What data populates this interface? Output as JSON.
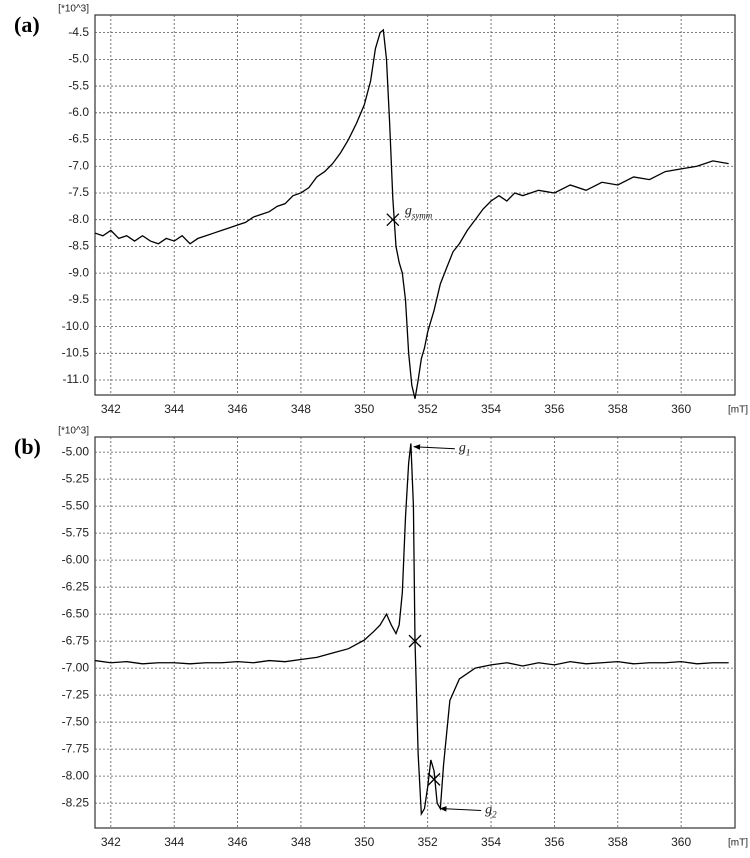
{
  "chart_data": [
    {
      "type": "line",
      "panel_label": "(a)",
      "y_unit_label": "[*10^3]",
      "x_unit_label": "[mT]",
      "x": [
        341.5,
        341.75,
        342,
        342.25,
        342.5,
        342.75,
        343,
        343.25,
        343.5,
        343.75,
        344,
        344.25,
        344.5,
        344.75,
        345,
        345.25,
        345.5,
        345.75,
        346,
        346.25,
        346.5,
        346.75,
        347,
        347.25,
        347.5,
        347.75,
        348,
        348.25,
        348.5,
        348.75,
        349,
        349.25,
        349.5,
        349.75,
        350,
        350.2,
        350.35,
        350.5,
        350.6,
        350.7,
        350.8,
        350.9,
        351,
        351.1,
        351.2,
        351.3,
        351.4,
        351.5,
        351.6,
        351.7,
        351.8,
        351.9,
        352,
        352.2,
        352.4,
        352.6,
        352.8,
        353,
        353.25,
        353.5,
        353.75,
        354,
        354.25,
        354.5,
        354.75,
        355,
        355.5,
        356,
        356.5,
        357,
        357.5,
        358,
        358.5,
        359,
        359.5,
        360,
        360.5,
        361,
        361.5
      ],
      "series": [
        {
          "color": "#000000",
          "values": [
            -8.25,
            -8.3,
            -8.2,
            -8.35,
            -8.3,
            -8.4,
            -8.3,
            -8.4,
            -8.45,
            -8.35,
            -8.4,
            -8.3,
            -8.45,
            -8.35,
            -8.3,
            -8.25,
            -8.2,
            -8.15,
            -8.1,
            -8.05,
            -7.95,
            -7.9,
            -7.85,
            -7.75,
            -7.7,
            -7.55,
            -7.5,
            -7.4,
            -7.2,
            -7.1,
            -6.95,
            -6.75,
            -6.5,
            -6.2,
            -5.85,
            -5.4,
            -4.8,
            -4.5,
            -4.45,
            -5.0,
            -6.2,
            -7.6,
            -8.5,
            -8.8,
            -9.0,
            -9.5,
            -10.5,
            -11.1,
            -11.35,
            -11.0,
            -10.6,
            -10.4,
            -10.1,
            -9.7,
            -9.2,
            -8.9,
            -8.6,
            -8.45,
            -8.2,
            -8.0,
            -7.8,
            -7.65,
            -7.55,
            -7.65,
            -7.5,
            -7.55,
            -7.45,
            -7.5,
            -7.35,
            -7.45,
            -7.3,
            -7.35,
            -7.2,
            -7.25,
            -7.1,
            -7.05,
            -7.0,
            -6.9,
            -6.95
          ]
        }
      ],
      "xlim": [
        341.5,
        361.7
      ],
      "ylim": [
        -11.28,
        -4.17
      ],
      "xticks": [
        342,
        344,
        346,
        348,
        350,
        352,
        354,
        356,
        358,
        360
      ],
      "yticks": [
        -4.5,
        {
          "value": -5,
          "label": "-5.0"
        },
        -5.5,
        {
          "value": -6,
          "label": "-6.0"
        },
        -6.5,
        {
          "value": -7,
          "label": "-7.0"
        },
        -7.5,
        {
          "value": -8,
          "label": "-8.0"
        },
        -8.5,
        {
          "value": -9,
          "label": "-9.0"
        },
        -9.5,
        {
          "value": -10,
          "label": "-10.0"
        },
        -10.5,
        {
          "value": -11,
          "label": "-11.0"
        }
      ],
      "grid": true,
      "markers": [
        {
          "x": 350.9,
          "y": -8.0
        }
      ],
      "annotations": [
        {
          "text": "g",
          "subscript": "symm",
          "x": 350.9,
          "y": -8.0,
          "arrow": false
        }
      ]
    },
    {
      "type": "line",
      "panel_label": "(b)",
      "y_unit_label": "[*10^3]",
      "x_unit_label": "[mT]",
      "x": [
        341.5,
        342,
        342.5,
        343,
        343.5,
        344,
        344.5,
        345,
        345.5,
        346,
        346.5,
        347,
        347.5,
        348,
        348.5,
        349,
        349.5,
        350,
        350.3,
        350.5,
        350.7,
        350.85,
        351,
        351.1,
        351.2,
        351.3,
        351.4,
        351.47,
        351.55,
        351.6,
        351.7,
        351.8,
        351.9,
        352,
        352.1,
        352.2,
        352.3,
        352.4,
        352.5,
        352.7,
        353,
        353.5,
        354,
        354.5,
        355,
        355.5,
        356,
        356.5,
        357,
        357.5,
        358,
        358.5,
        359,
        359.5,
        360,
        360.5,
        361,
        361.5
      ],
      "series": [
        {
          "color": "#000000",
          "values": [
            -6.93,
            -6.95,
            -6.94,
            -6.96,
            -6.95,
            -6.95,
            -6.96,
            -6.95,
            -6.95,
            -6.94,
            -6.95,
            -6.93,
            -6.94,
            -6.92,
            -6.9,
            -6.86,
            -6.82,
            -6.74,
            -6.66,
            -6.6,
            -6.5,
            -6.6,
            -6.68,
            -6.6,
            -6.3,
            -5.6,
            -5.1,
            -4.92,
            -5.5,
            -6.75,
            -7.8,
            -8.35,
            -8.3,
            -8.1,
            -7.85,
            -7.95,
            -8.25,
            -8.3,
            -7.9,
            -7.3,
            -7.1,
            -7.0,
            -6.97,
            -6.95,
            -6.98,
            -6.95,
            -6.97,
            -6.94,
            -6.96,
            -6.95,
            -6.94,
            -6.96,
            -6.95,
            -6.95,
            -6.94,
            -6.96,
            -6.95,
            -6.95
          ]
        }
      ],
      "xlim": [
        341.5,
        361.7
      ],
      "ylim": [
        -8.48,
        -4.86
      ],
      "xticks": [
        342,
        344,
        346,
        348,
        350,
        352,
        354,
        356,
        358,
        360
      ],
      "yticks": [
        {
          "value": -5,
          "label": "-5.00"
        },
        -5.25,
        {
          "value": -5.5,
          "label": "-5.50"
        },
        -5.75,
        {
          "value": -6,
          "label": "-6.00"
        },
        -6.25,
        {
          "value": -6.5,
          "label": "-6.50"
        },
        -6.75,
        {
          "value": -7,
          "label": "-7.00"
        },
        -7.25,
        {
          "value": -7.5,
          "label": "-7.50"
        },
        -7.75,
        {
          "value": -8,
          "label": "-8.00"
        },
        -8.25
      ],
      "grid": true,
      "markers": [
        {
          "x": 351.6,
          "y": -6.75
        },
        {
          "x": 352.2,
          "y": -8.03
        }
      ],
      "annotations": [
        {
          "text": "g",
          "subscript": "1",
          "x": 351.47,
          "y": -4.95,
          "arrow": true
        },
        {
          "text": "g",
          "subscript": "2",
          "x": 352.3,
          "y": -8.3,
          "arrow": true
        }
      ]
    }
  ]
}
